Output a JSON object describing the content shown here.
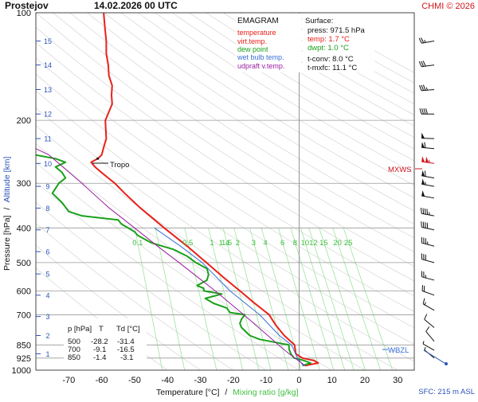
{
  "header": {
    "station": "Prostejov",
    "datetime": "14.02.2026 00 UTC",
    "credit": "CHMI © 2026"
  },
  "legend": {
    "title": "EMAGRAM",
    "items": [
      {
        "label": "temperature",
        "color": "#e8211a"
      },
      {
        "label": "virt.temp.",
        "color": "#e8211a"
      },
      {
        "label": "dew point",
        "color": "#19a119"
      },
      {
        "label": "wet bulb temp.",
        "color": "#3a6fd8"
      },
      {
        "label": "udpraft v.temp.",
        "color": "#9a1fa0"
      }
    ]
  },
  "surface": {
    "heading": "Surface:",
    "press": "press: 971.5 hPa",
    "temp": "temp: 1.7 °C",
    "dwpt": "dwpt: 1.0 °C",
    "tconv": "t-conv: 8.0 °C",
    "tmxfc": "t-mxfc: 11.1 °C"
  },
  "table": {
    "headers": [
      "p [hPa]",
      "T",
      "Td [°C]"
    ],
    "rows": [
      [
        "500",
        "-28.2",
        "-31.4"
      ],
      [
        "700",
        "-9.1",
        "-16.5"
      ],
      [
        "850",
        "-1.4",
        "-3.1"
      ]
    ]
  },
  "annotations": {
    "tropo": "Tropo",
    "mxws": "MXWS",
    "wbzl": "WBZL",
    "sfc": "SFC: 215 m ASL"
  },
  "axes": {
    "xlabel": "Temperature [°C]",
    "xlabel_sep": "/",
    "xlabel2": "Mixing ratio [g/kg]",
    "ylabel": "Pressure [hPa]",
    "ylabel_sep": "/",
    "ylabel2": "Altitude [km]"
  },
  "chart_data": {
    "type": "line",
    "title": "EMAGRAM",
    "xlim": [
      -80,
      35
    ],
    "ylim_pressure_hpa": [
      1000,
      100
    ],
    "y_scale": "log",
    "x_ticks": [
      -70,
      -60,
      -50,
      -40,
      -30,
      -20,
      -10,
      0,
      10,
      20,
      30
    ],
    "y_ticks": [
      100,
      200,
      300,
      400,
      500,
      600,
      700,
      850,
      925,
      1000
    ],
    "altitude_km_ticks": [
      {
        "km": 1,
        "p": 900
      },
      {
        "km": 2,
        "p": 800
      },
      {
        "km": 3,
        "p": 708
      },
      {
        "km": 4,
        "p": 617
      },
      {
        "km": 5,
        "p": 538
      },
      {
        "km": 6,
        "p": 466
      },
      {
        "km": 7,
        "p": 405
      },
      {
        "km": 8,
        "p": 352
      },
      {
        "km": 9,
        "p": 306
      },
      {
        "km": 10,
        "p": 264
      },
      {
        "km": 11,
        "p": 225
      },
      {
        "km": 12,
        "p": 192
      },
      {
        "km": 13,
        "p": 164
      },
      {
        "km": 14,
        "p": 140
      },
      {
        "km": 15,
        "p": 120
      }
    ],
    "mixing_ratio_labels": [
      "0.1",
      "0.5",
      "1.5",
      "1",
      "1.4",
      "2",
      "3",
      "4",
      "6",
      "8",
      "10",
      "12",
      "15",
      "20",
      "25"
    ],
    "mixing_ratio_label_pressure_hpa": 440,
    "series": [
      {
        "name": "temperature",
        "color": "#e8211a",
        "points": [
          [
            971.5,
            1.7
          ],
          [
            955,
            5.8
          ],
          [
            940,
            4.5
          ],
          [
            925,
            1.0
          ],
          [
            900,
            -1.0
          ],
          [
            875,
            -1.2
          ],
          [
            850,
            -1.4
          ],
          [
            800,
            -4.5
          ],
          [
            750,
            -7.0
          ],
          [
            700,
            -9.1
          ],
          [
            650,
            -13.5
          ],
          [
            600,
            -18.0
          ],
          [
            550,
            -23.0
          ],
          [
            500,
            -28.2
          ],
          [
            450,
            -34.0
          ],
          [
            400,
            -41.0
          ],
          [
            350,
            -48.5
          ],
          [
            320,
            -53.0
          ],
          [
            300,
            -56.0
          ],
          [
            290,
            -58.0
          ],
          [
            280,
            -60.0
          ],
          [
            270,
            -62.0
          ],
          [
            262,
            -63.2
          ],
          [
            256,
            -61.2
          ],
          [
            250,
            -60.0
          ],
          [
            240,
            -59.5
          ],
          [
            225,
            -58.6
          ],
          [
            200,
            -58.9
          ],
          [
            180,
            -56.8
          ],
          [
            170,
            -57.0
          ],
          [
            160,
            -56.8
          ],
          [
            150,
            -57.8
          ],
          [
            140,
            -58.0
          ],
          [
            130,
            -58.6
          ],
          [
            120,
            -58.6
          ],
          [
            110,
            -59.0
          ],
          [
            100,
            -59.4
          ]
        ]
      },
      {
        "name": "dew point",
        "color": "#19a119",
        "points": [
          [
            971.5,
            1.0
          ],
          [
            955,
            3.5
          ],
          [
            940,
            1.5
          ],
          [
            925,
            -1.5
          ],
          [
            900,
            -2.5
          ],
          [
            875,
            -3.0
          ],
          [
            850,
            -3.1
          ],
          [
            820,
            -12.0
          ],
          [
            800,
            -15.0
          ],
          [
            760,
            -17.5
          ],
          [
            740,
            -18.0
          ],
          [
            720,
            -17.5
          ],
          [
            700,
            -16.5
          ],
          [
            690,
            -21.0
          ],
          [
            670,
            -22.0
          ],
          [
            650,
            -26.0
          ],
          [
            630,
            -28.5
          ],
          [
            612,
            -23.5
          ],
          [
            600,
            -29.0
          ],
          [
            590,
            -29.0
          ],
          [
            580,
            -31.0
          ],
          [
            560,
            -28.0
          ],
          [
            540,
            -27.5
          ],
          [
            520,
            -28.0
          ],
          [
            500,
            -31.4
          ],
          [
            480,
            -34.0
          ],
          [
            460,
            -38.0
          ],
          [
            440,
            -45.0
          ],
          [
            420,
            -49.0
          ],
          [
            410,
            -50.0
          ],
          [
            400,
            -52.0
          ],
          [
            390,
            -54.0
          ],
          [
            380,
            -55.0
          ],
          [
            370,
            -66.0
          ],
          [
            360,
            -70.0
          ],
          [
            340,
            -72.0
          ],
          [
            320,
            -75.0
          ],
          [
            300,
            -73.0
          ],
          [
            290,
            -71.0
          ],
          [
            280,
            -72.0
          ],
          [
            270,
            -74.0
          ],
          [
            262,
            -71.0
          ],
          [
            256,
            -74.0
          ],
          [
            250,
            -80.0
          ]
        ]
      },
      {
        "name": "wet bulb temp.",
        "color": "#3a6fd8",
        "points": [
          [
            971.5,
            1.3
          ],
          [
            925,
            -0.5
          ],
          [
            850,
            -2.3
          ],
          [
            800,
            -6.0
          ],
          [
            700,
            -12.0
          ],
          [
            600,
            -21.0
          ],
          [
            500,
            -29.5
          ],
          [
            450,
            -36.0
          ],
          [
            400,
            -44.0
          ]
        ]
      },
      {
        "name": "udpraft v.temp.",
        "color": "#9a1fa0",
        "points": [
          [
            971.5,
            1.9
          ],
          [
            900,
            -3.0
          ],
          [
            850,
            -6.3
          ],
          [
            800,
            -9.5
          ],
          [
            700,
            -16.8
          ],
          [
            600,
            -25.5
          ],
          [
            500,
            -36.5
          ],
          [
            450,
            -43.0
          ],
          [
            400,
            -50.0
          ],
          [
            350,
            -58.0
          ],
          [
            300,
            -66.0
          ],
          [
            250,
            -76.0
          ],
          [
            240,
            -80.0
          ]
        ]
      }
    ],
    "wind_barbs": [
      {
        "p": 120,
        "dir": 260,
        "spd": 25
      },
      {
        "p": 140,
        "dir": 262,
        "spd": 30
      },
      {
        "p": 164,
        "dir": 265,
        "spd": 35
      },
      {
        "p": 192,
        "dir": 270,
        "spd": 40
      },
      {
        "p": 225,
        "dir": 272,
        "spd": 50
      },
      {
        "p": 240,
        "dir": 275,
        "spd": 60
      },
      {
        "p": 264,
        "dir": 278,
        "spd": 105
      },
      {
        "p": 290,
        "dir": 280,
        "spd": 60
      },
      {
        "p": 306,
        "dir": 280,
        "spd": 55
      },
      {
        "p": 330,
        "dir": 280,
        "spd": 50
      },
      {
        "p": 370,
        "dir": 280,
        "spd": 45
      },
      {
        "p": 405,
        "dir": 282,
        "spd": 40
      },
      {
        "p": 450,
        "dir": 285,
        "spd": 35
      },
      {
        "p": 500,
        "dir": 285,
        "spd": 30
      },
      {
        "p": 560,
        "dir": 285,
        "spd": 25
      },
      {
        "p": 617,
        "dir": 290,
        "spd": 20
      },
      {
        "p": 680,
        "dir": 300,
        "spd": 15
      },
      {
        "p": 760,
        "dir": 310,
        "spd": 10
      },
      {
        "p": 830,
        "dir": 320,
        "spd": 10
      },
      {
        "p": 880,
        "dir": 300,
        "spd": 5
      },
      {
        "p": 925,
        "dir": 310,
        "spd": 5
      }
    ],
    "tropopause_hpa": 255,
    "mxws_hpa": 262,
    "wbzl_hpa": 870
  }
}
